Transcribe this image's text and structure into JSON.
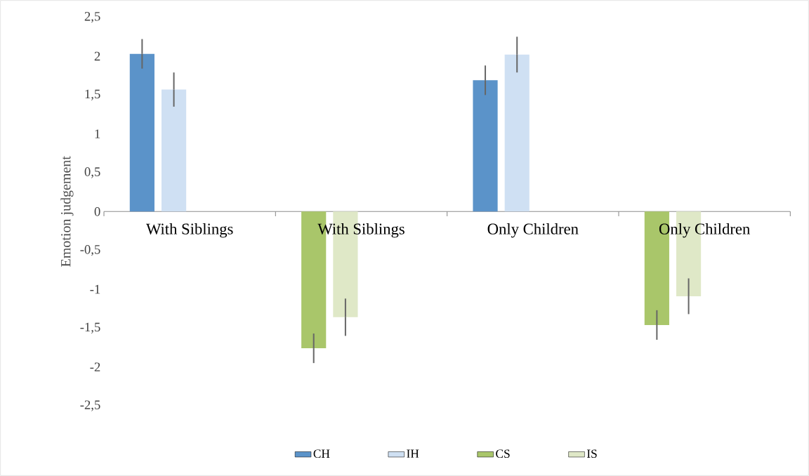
{
  "chart_data": {
    "type": "bar",
    "ylabel": "Emotion judgement",
    "categories": [
      "With Siblings",
      "With Siblings",
      "Only Children",
      "Only Children"
    ],
    "series": [
      {
        "name": "CH",
        "color": "#5b93c9",
        "values": [
          2.03,
          null,
          1.69,
          null
        ],
        "errors": [
          0.19,
          null,
          0.19,
          null
        ]
      },
      {
        "name": "IH",
        "color": "#cfe0f3",
        "values": [
          1.57,
          null,
          2.02,
          null
        ],
        "errors": [
          0.22,
          null,
          0.23,
          null
        ]
      },
      {
        "name": "CS",
        "color": "#a9c66a",
        "values": [
          null,
          -1.76,
          null,
          -1.46
        ],
        "errors": [
          null,
          0.19,
          null,
          0.19
        ]
      },
      {
        "name": "IS",
        "color": "#dfe8c7",
        "values": [
          null,
          -1.36,
          null,
          -1.09
        ],
        "errors": [
          null,
          0.24,
          null,
          0.23
        ]
      }
    ],
    "ylim": [
      -2.5,
      2.5
    ],
    "yticks": [
      {
        "value": -2.5,
        "label": "-2,5"
      },
      -2,
      {
        "value": -1.5,
        "label": "-1,5"
      },
      -1,
      {
        "value": -0.5,
        "label": "-0,5"
      },
      0,
      {
        "value": 0.5,
        "label": "0,5"
      },
      1,
      {
        "value": 1.5,
        "label": "1,5"
      },
      2,
      {
        "value": 2.5,
        "label": "2,5"
      }
    ],
    "legend": "bottom"
  }
}
